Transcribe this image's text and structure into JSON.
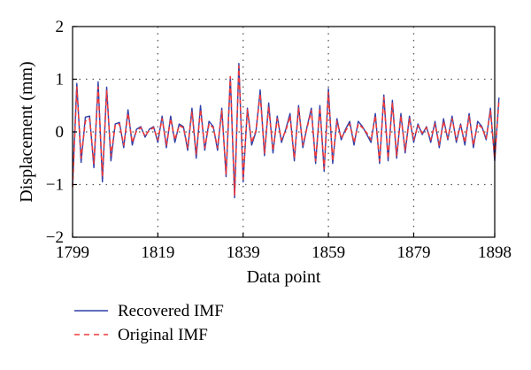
{
  "chart_data": {
    "type": "line",
    "xlabel": "Data point",
    "ylabel": "Displacement (mm)",
    "xlim": [
      1799,
      1898
    ],
    "ylim": [
      -2,
      2
    ],
    "xticks": [
      1799,
      1819,
      1839,
      1859,
      1879,
      1898
    ],
    "yticks": [
      -2,
      -1,
      0,
      1,
      2
    ],
    "grid": "dotted at interior ticks",
    "legend_position": "bottom-left, below plot",
    "series": [
      {
        "name": "Recovered IMF",
        "color": "#2f3fa8",
        "style": "solid",
        "x_start": 1799,
        "values": [
          -1.0,
          0.92,
          -0.58,
          0.28,
          0.3,
          -0.68,
          0.95,
          -0.95,
          0.85,
          -0.55,
          0.15,
          0.18,
          -0.3,
          0.42,
          -0.25,
          0.05,
          0.1,
          -0.1,
          0.05,
          0.1,
          -0.2,
          0.3,
          -0.3,
          0.3,
          -0.2,
          0.15,
          0.1,
          -0.35,
          0.45,
          -0.5,
          0.5,
          -0.35,
          0.2,
          0.1,
          -0.35,
          0.45,
          -0.85,
          1.05,
          -1.25,
          1.3,
          -0.95,
          0.45,
          -0.25,
          0.0,
          0.8,
          -0.45,
          0.55,
          -0.4,
          0.3,
          -0.2,
          0.05,
          0.35,
          -0.55,
          0.5,
          -0.3,
          0.1,
          0.45,
          -0.6,
          0.5,
          -0.75,
          0.82,
          -0.6,
          0.25,
          -0.15,
          0.05,
          0.2,
          -0.25,
          0.2,
          0.1,
          -0.05,
          -0.2,
          0.35,
          -0.6,
          0.7,
          -0.55,
          0.6,
          -0.5,
          0.35,
          -0.4,
          0.3,
          -0.2,
          0.15,
          -0.05,
          0.1,
          -0.2,
          0.2,
          -0.3,
          0.25,
          -0.15,
          0.3,
          -0.2,
          0.15,
          -0.25,
          0.35,
          -0.3,
          0.2,
          0.1,
          -0.15,
          0.45,
          -0.55,
          0.65
        ]
      },
      {
        "name": "Original IMF",
        "color": "#ee3a3a",
        "style": "dashed",
        "x_start": 1799,
        "values": [
          -1.05,
          0.85,
          -0.5,
          0.2,
          0.25,
          -0.6,
          0.85,
          -0.85,
          0.78,
          -0.45,
          0.12,
          0.15,
          -0.25,
          0.35,
          -0.2,
          0.02,
          0.08,
          -0.08,
          0.03,
          0.08,
          -0.15,
          0.25,
          -0.25,
          0.25,
          -0.15,
          0.12,
          0.08,
          -0.3,
          0.38,
          -0.42,
          0.42,
          -0.3,
          0.15,
          0.08,
          -0.3,
          0.4,
          -0.8,
          1.05,
          -1.2,
          1.25,
          -0.9,
          0.42,
          -0.2,
          0.02,
          0.72,
          -0.4,
          0.48,
          -0.35,
          0.25,
          -0.15,
          0.02,
          0.3,
          -0.5,
          0.45,
          -0.25,
          0.08,
          0.4,
          -0.55,
          0.45,
          -0.7,
          0.75,
          -0.55,
          0.2,
          -0.12,
          0.02,
          0.15,
          -0.2,
          0.15,
          0.08,
          -0.02,
          -0.15,
          0.3,
          -0.55,
          0.65,
          -0.5,
          0.55,
          -0.45,
          0.3,
          -0.35,
          0.25,
          -0.15,
          0.12,
          -0.02,
          0.08,
          -0.15,
          0.15,
          -0.25,
          0.2,
          -0.12,
          0.25,
          -0.15,
          0.12,
          -0.2,
          0.3,
          -0.25,
          0.15,
          0.08,
          -0.12,
          0.4,
          -0.5,
          0.6
        ]
      }
    ]
  }
}
